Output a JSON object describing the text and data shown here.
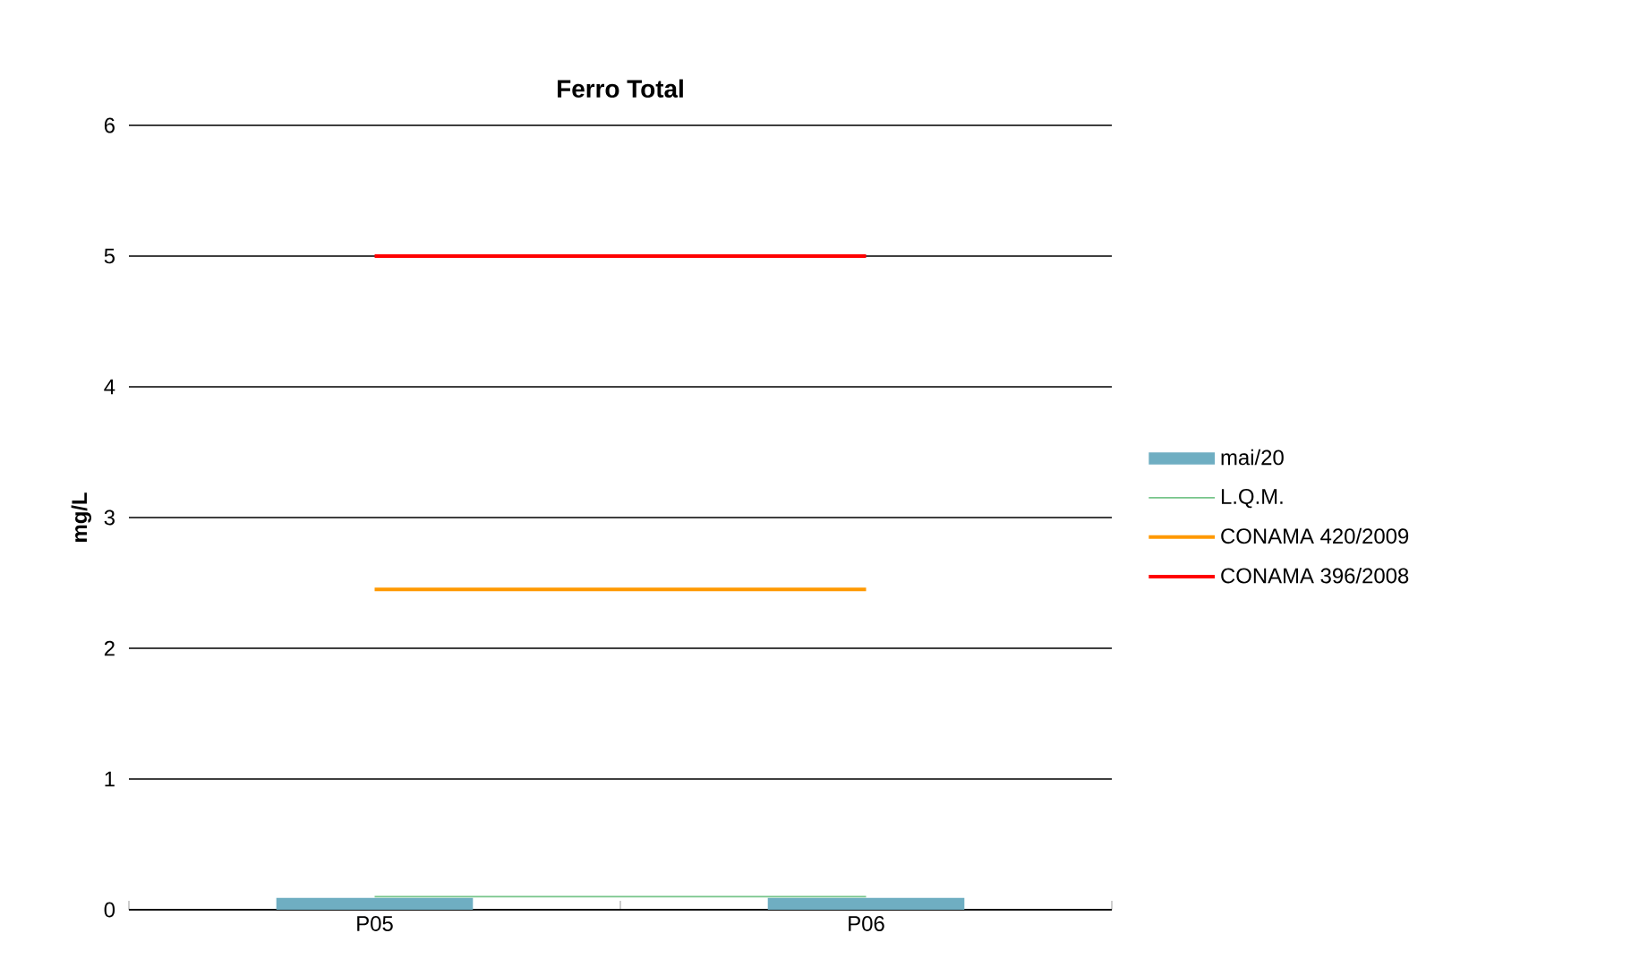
{
  "chart_data": {
    "type": "bar",
    "title": "Ferro Total",
    "ylabel": "mg/L",
    "categories": [
      "P05",
      "P06"
    ],
    "series": [
      {
        "name": "mai/20",
        "color": "#6faec2",
        "values": [
          0.09,
          0.09
        ]
      },
      {
        "name": "L.Q.M.",
        "type": "line",
        "color": "#77c58a",
        "values": [
          0.1,
          0.1
        ]
      },
      {
        "name": "CONAMA 420/2009",
        "type": "line",
        "color": "#ff9900",
        "values": [
          2.45,
          2.45
        ]
      },
      {
        "name": "CONAMA 396/2008",
        "type": "line",
        "color": "#ff0000",
        "values": [
          5,
          5
        ]
      }
    ],
    "ylim": [
      0,
      6
    ],
    "yticks": [
      0,
      1,
      2,
      3,
      4,
      5,
      6
    ],
    "grid": "y",
    "legend": "right"
  }
}
